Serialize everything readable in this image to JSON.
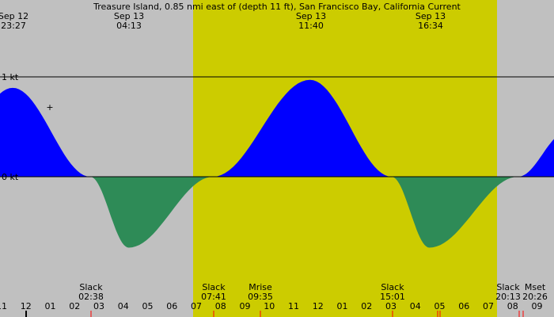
{
  "chart_data": {
    "type": "area",
    "title": "Treasure Island, 0.85 nmi east of (depth 11 ft), San Francisco Bay, California Current",
    "unit": "kt",
    "y_ticks": [
      {
        "value": 1,
        "label": "1 kt"
      },
      {
        "value": 0,
        "label": "0 kt"
      }
    ],
    "extrema": [
      {
        "date": "Sep 12",
        "time": "23:27",
        "kind": "max flood",
        "value": 0.89
      },
      {
        "date": "Sep 13",
        "time": "04:13",
        "kind": "max ebb",
        "value": -0.71
      },
      {
        "date": "Sep 13",
        "time": "11:40",
        "kind": "max flood",
        "value": 0.97
      },
      {
        "date": "Sep 13",
        "time": "16:34",
        "kind": "max ebb",
        "value": -0.71
      }
    ],
    "events": [
      {
        "label": "Slack",
        "time": "02:38"
      },
      {
        "label": "Slack",
        "time": "07:41"
      },
      {
        "label": "Mrise",
        "time": "09:35"
      },
      {
        "label": "Slack",
        "time": "15:01"
      },
      {
        "label": "Slack",
        "time": "20:13"
      },
      {
        "label": "Mset",
        "time": "20:26"
      }
    ],
    "hour_ticks": [
      "11",
      "12",
      "01",
      "02",
      "03",
      "04",
      "05",
      "06",
      "07",
      "08",
      "09",
      "10",
      "11",
      "12",
      "01",
      "02",
      "03",
      "04",
      "05",
      "06",
      "07",
      "08",
      "09"
    ],
    "daylight": {
      "start": "07:41",
      "end": "19:11"
    },
    "colors": {
      "flood": "#0000ff",
      "ebb": "#2e8b57",
      "daylight": "#cccc00",
      "night": "#c0c0c0"
    }
  }
}
